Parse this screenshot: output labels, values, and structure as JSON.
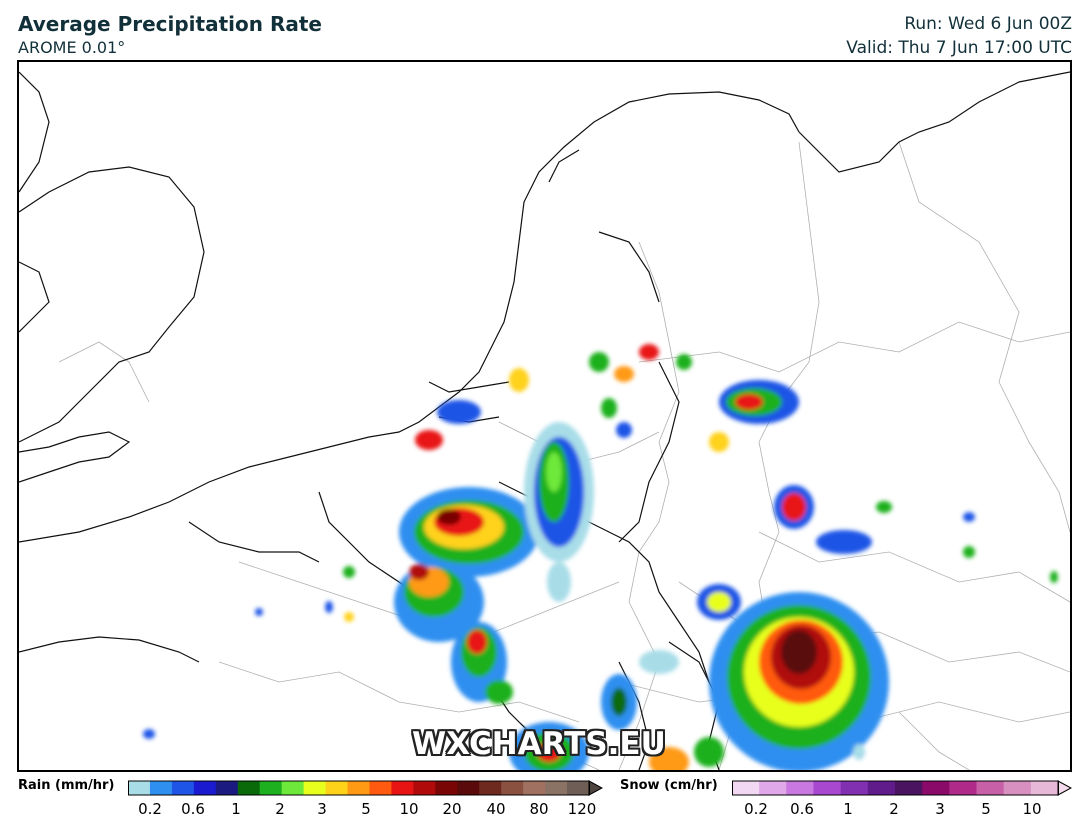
{
  "header": {
    "title": "Average Precipitation Rate",
    "model": "AROME 0.01°",
    "run": "Run: Wed 6 Jun 00Z",
    "valid": "Valid: Thu 7 Jun 17:00 UTC"
  },
  "watermark": "WXCHARTS.EU",
  "legend": {
    "rain": {
      "label": "Rain (mm/hr)",
      "ticks": [
        "0.2",
        "0.6",
        "1",
        "2",
        "3",
        "5",
        "10",
        "20",
        "40",
        "80",
        "120"
      ],
      "colors": [
        "#a8dde8",
        "#2f8ff0",
        "#1f55e6",
        "#1a1ad0",
        "#1a1a80",
        "#0a6a0a",
        "#1fb01f",
        "#6ee83a",
        "#e8ff1e",
        "#ffd21a",
        "#ff9a14",
        "#ff5a10",
        "#e81414",
        "#b00a0a",
        "#7a0505",
        "#5a0a0a",
        "#6e2a1e",
        "#8a5040",
        "#a07060",
        "#8a7264",
        "#6e5e56",
        "#4e4440"
      ]
    },
    "snow": {
      "label": "Snow (cm/hr)",
      "ticks": [
        "0.2",
        "0.6",
        "1",
        "2",
        "3",
        "5",
        "10"
      ],
      "colors": [
        "#f2d8f2",
        "#e0a8e8",
        "#c878e0",
        "#a848d0",
        "#8030b0",
        "#601c8a",
        "#4a1460",
        "#8a0a6a",
        "#b02a8a",
        "#c860a8",
        "#d890c0",
        "#e8b8d8",
        "#f4dcec"
      ]
    }
  }
}
